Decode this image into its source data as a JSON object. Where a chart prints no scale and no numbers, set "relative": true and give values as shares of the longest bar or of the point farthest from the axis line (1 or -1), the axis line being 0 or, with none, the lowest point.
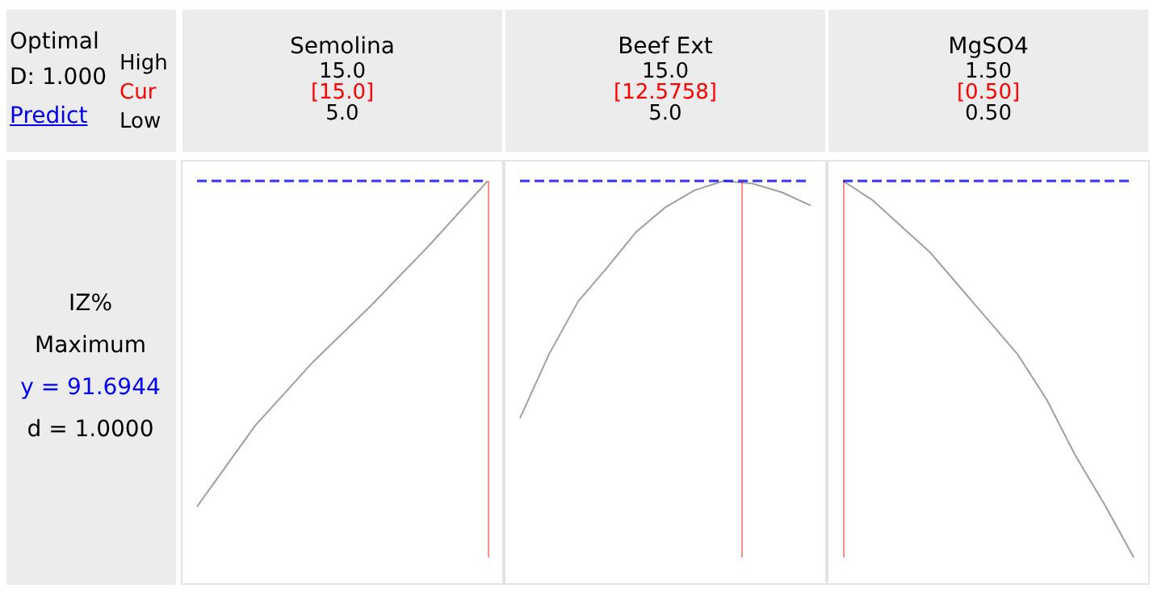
{
  "chart_data": [
    {
      "type": "other",
      "annotations": [
        "Optimal",
        "D: 1.000",
        "Predict",
        "High",
        "Cur",
        "Low",
        "IZ%",
        "Maximum",
        "y = 91.6944",
        "d = 1.0000"
      ]
    },
    {
      "type": "line",
      "title": "Semolina",
      "relative": true,
      "color": "#a0a0a0",
      "marker": "none",
      "grid": false,
      "annotations": [
        "15.0",
        "[15.0]",
        "5.0"
      ],
      "categories": [
        null,
        null,
        null,
        null,
        null,
        null
      ],
      "values": [
        0.135,
        0.35,
        0.52,
        0.67,
        0.83,
        1
      ],
      "ref_lines": [
        {
          "axis": "y",
          "value": 1,
          "color": "#0000ff",
          "line_style": "dashed"
        }
      ]
    },
    {
      "type": "line",
      "title": "Beef Ext",
      "relative": true,
      "color": "#a0a0a0",
      "marker": "none",
      "grid": false,
      "annotations": [
        "15.0",
        "[12.5758]",
        "5.0"
      ],
      "categories": [
        null,
        null,
        null,
        null,
        null,
        null,
        null,
        null,
        null,
        null,
        null
      ],
      "values": [
        0.37,
        0.54,
        0.68,
        0.77,
        0.865,
        0.93,
        0.975,
        1,
        0.993,
        0.97,
        0.935
      ],
      "ref_lines": [
        {
          "axis": "y",
          "value": 1,
          "color": "#0000ff",
          "line_style": "dashed"
        }
      ]
    },
    {
      "type": "line",
      "title": "MgSO4",
      "relative": true,
      "color": "#a0a0a0",
      "marker": "none",
      "grid": false,
      "annotations": [
        "1.50",
        "[0.50]",
        "0.50"
      ],
      "categories": [
        null,
        null,
        null,
        null,
        null,
        null,
        null,
        null,
        null,
        null,
        null
      ],
      "values": [
        1,
        0.95,
        0.88,
        0.81,
        0.72,
        0.63,
        0.54,
        0.42,
        0.27,
        0.14,
        0
      ],
      "ref_lines": [
        {
          "axis": "y",
          "value": 1,
          "color": "#0000ff",
          "line_style": "dashed"
        }
      ]
    }
  ]
}
